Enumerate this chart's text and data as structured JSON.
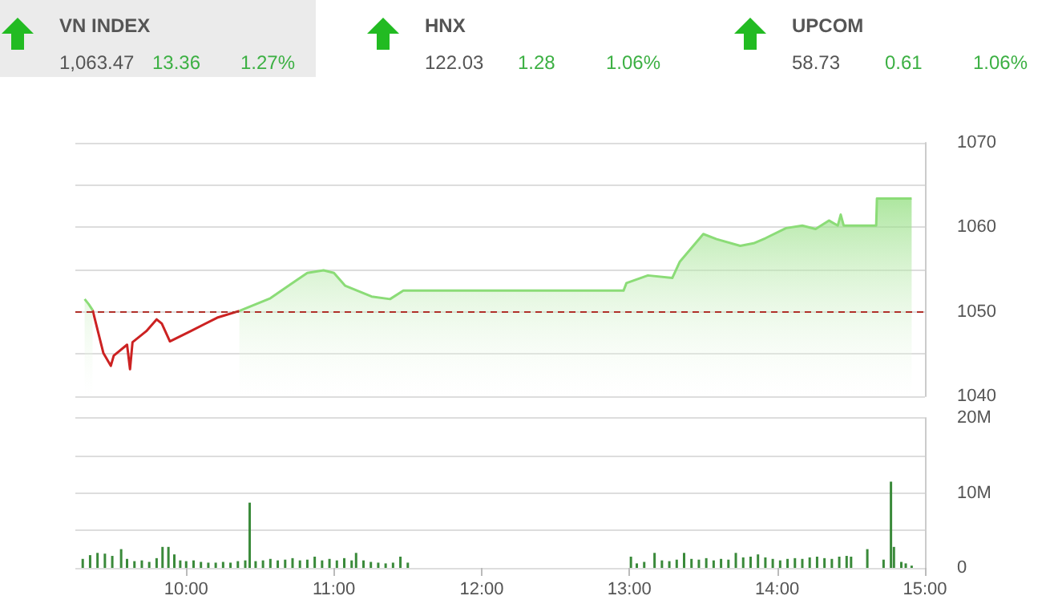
{
  "chart_data": [
    {
      "type": "other",
      "title": "VN INDEX",
      "values": [
        1063.47,
        13.36,
        1.27
      ],
      "value_labels": [
        "1,063.47",
        "13.36",
        "1.27%"
      ],
      "colors": [
        "#555555",
        "#3cb043",
        "#3cb043"
      ]
    },
    {
      "type": "other",
      "title": "HNX",
      "values": [
        122.03,
        1.28,
        1.06
      ],
      "value_labels": [
        "122.03",
        "1.28",
        "1.06%"
      ],
      "colors": [
        "#555555",
        "#3cb043",
        "#3cb043"
      ]
    },
    {
      "type": "other",
      "title": "UPCOM",
      "values": [
        58.73,
        0.61,
        1.06
      ],
      "value_labels": [
        "58.73",
        "0.61",
        "1.06%"
      ],
      "colors": [
        "#555555",
        "#3cb043",
        "#3cb043"
      ]
    },
    {
      "type": "area",
      "xlim": [
        9.25,
        15
      ],
      "ylim": [
        1040,
        1070
      ],
      "yticks": [
        1040,
        1050,
        1060,
        1070
      ],
      "grid": "y",
      "tick_labels": "y",
      "series": [
        {
          "type": "line",
          "color": "#cc2222",
          "x": [
            9.367,
            9.44,
            9.49,
            9.51,
            9.6,
            9.62,
            9.637,
            9.73,
            9.8,
            9.835,
            9.89,
            10.03,
            10.21,
            10.36
          ],
          "values": [
            1050.2,
            1045.1,
            1043.6,
            1044.8,
            1046.1,
            1043.2,
            1046.4,
            1047.7,
            1049.1,
            1048.6,
            1046.5,
            1047.7,
            1049.3,
            1050.1
          ]
        },
        {
          "type": "area",
          "color": "#8bdc77",
          "x": [
            9.313,
            9.34,
            9.367,
            9.4,
            10.36,
            10.57,
            10.72,
            10.82,
            10.93,
            11.0,
            11.075,
            11.255,
            11.38,
            11.47,
            12.96,
            12.98,
            13.125,
            13.29,
            13.34,
            13.5,
            13.59,
            13.75,
            13.84,
            13.92,
            14.06,
            14.17,
            14.26,
            14.35,
            14.41,
            14.43,
            14.45,
            14.67,
            14.675,
            14.91
          ],
          "values": [
            1051.5,
            1050.9,
            1050.2,
            null,
            1050.1,
            1051.6,
            1053.4,
            1054.6,
            1054.9,
            1054.6,
            1053.1,
            1051.8,
            1051.5,
            1052.5,
            1052.5,
            1053.4,
            1054.3,
            1054.0,
            1055.9,
            1059.2,
            1058.6,
            1057.8,
            1058.1,
            1058.7,
            1059.9,
            1060.2,
            1059.8,
            1060.8,
            1060.2,
            1061.5,
            1060.2,
            1060.2,
            1063.4,
            1063.4
          ]
        }
      ],
      "ref_lines": [
        {
          "axis": "y",
          "value": 1050,
          "color": "#b0302a",
          "line_style": "dashed"
        }
      ]
    },
    {
      "type": "bar",
      "color": "#3a8a3a",
      "xlim": [
        9.25,
        15
      ],
      "ylim": [
        0,
        20
      ],
      "yticks": [
        {
          "value": 0,
          "label": "0"
        },
        {
          "value": 10,
          "label": "10M"
        },
        {
          "value": 20,
          "label": "20M"
        }
      ],
      "xticks": [
        {
          "value": 10,
          "label": "10:00"
        },
        {
          "value": 11,
          "label": "11:00"
        },
        {
          "value": 12,
          "label": "12:00"
        },
        {
          "value": 13,
          "label": "13:00"
        },
        {
          "value": 14,
          "label": "14:00"
        },
        {
          "value": 15,
          "label": "15:00"
        }
      ],
      "grid": "y",
      "x": [
        9.3,
        9.35,
        9.4,
        9.45,
        9.5,
        9.56,
        9.6,
        9.65,
        9.7,
        9.75,
        9.8,
        9.84,
        9.88,
        9.92,
        9.96,
        10.0,
        10.05,
        10.1,
        10.15,
        10.2,
        10.25,
        10.3,
        10.35,
        10.4,
        10.43,
        10.47,
        10.52,
        10.57,
        10.62,
        10.67,
        10.72,
        10.77,
        10.82,
        10.87,
        10.92,
        10.97,
        11.02,
        11.07,
        11.12,
        11.15,
        11.2,
        11.25,
        11.3,
        11.35,
        11.4,
        11.45,
        11.5,
        13.01,
        13.05,
        13.1,
        13.17,
        13.22,
        13.27,
        13.32,
        13.37,
        13.42,
        13.47,
        13.52,
        13.57,
        13.62,
        13.67,
        13.72,
        13.77,
        13.82,
        13.87,
        13.92,
        13.97,
        14.02,
        14.07,
        14.12,
        14.17,
        14.22,
        14.27,
        14.32,
        14.37,
        14.42,
        14.47,
        14.5,
        14.61,
        14.72,
        14.77,
        14.79,
        14.84,
        14.87,
        14.91
      ],
      "values": [
        1.2,
        1.7,
        2.0,
        1.9,
        1.6,
        2.5,
        1.2,
        0.9,
        1.0,
        0.8,
        1.3,
        2.8,
        2.8,
        1.8,
        1.0,
        0.9,
        1.0,
        0.8,
        0.7,
        0.7,
        0.8,
        0.7,
        0.9,
        1.0,
        8.7,
        0.9,
        1.0,
        1.2,
        1.0,
        1.1,
        1.3,
        1.0,
        1.1,
        1.5,
        1.0,
        1.2,
        1.0,
        1.3,
        1.0,
        2.0,
        1.0,
        0.8,
        0.7,
        0.6,
        0.7,
        1.5,
        0.7,
        1.5,
        0.6,
        0.8,
        2.0,
        1.0,
        0.9,
        1.1,
        2.0,
        1.2,
        1.1,
        1.3,
        1.0,
        1.2,
        1.1,
        2.0,
        1.4,
        1.5,
        1.8,
        1.4,
        1.2,
        1.0,
        1.2,
        1.3,
        1.2,
        1.4,
        1.5,
        1.3,
        1.2,
        1.5,
        1.6,
        1.5,
        2.5,
        1.1,
        11.5,
        2.8,
        0.8,
        0.6,
        0.3
      ]
    }
  ]
}
